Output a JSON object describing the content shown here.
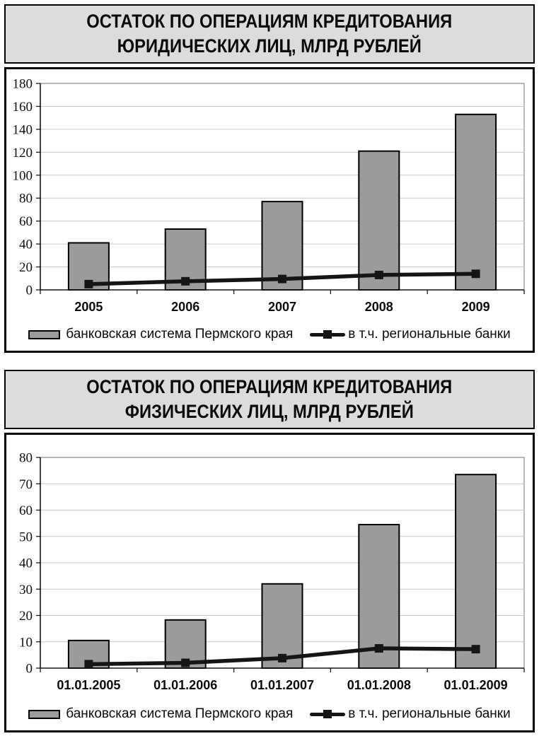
{
  "charts": [
    {
      "title_line1": "ОСТАТОК ПО ОПЕРАЦИЯМ КРЕДИТОВАНИЯ",
      "title_line2": "ЮРИДИЧЕСКИХ ЛИЦ, МЛРД РУБЛЕЙ"
    },
    {
      "title_line1": "ОСТАТОК ПО ОПЕРАЦИЯМ КРЕДИТОВАНИЯ",
      "title_line2": "ФИЗИЧЕСКИХ ЛИЦ, МЛРД РУБЛЕЙ"
    }
  ],
  "chart_data": [
    {
      "type": "bar",
      "title": "ОСТАТОК ПО ОПЕРАЦИЯМ КРЕДИТОВАНИЯ ЮРИДИЧЕСКИХ ЛИЦ, МЛРД РУБЛЕЙ",
      "categories": [
        "2005",
        "2006",
        "2007",
        "2008",
        "2009"
      ],
      "series": [
        {
          "name": "банковская система Пермского края",
          "type": "bar",
          "values": [
            41,
            53,
            77,
            121,
            153
          ]
        },
        {
          "name": "в т.ч. региональные банки",
          "type": "line",
          "values": [
            5,
            7.5,
            9.5,
            13,
            14
          ]
        }
      ],
      "xlabel": "",
      "ylabel": "",
      "ylim": [
        0,
        180
      ],
      "ytick_step": 20,
      "grid": true,
      "legend_position": "bottom"
    },
    {
      "type": "bar",
      "title": "ОСТАТОК ПО ОПЕРАЦИЯМ КРЕДИТОВАНИЯ ФИЗИЧЕСКИХ ЛИЦ, МЛРД РУБЛЕЙ",
      "categories": [
        "01.01.2005",
        "01.01.2006",
        "01.01.2007",
        "01.01.2008",
        "01.01.2009"
      ],
      "series": [
        {
          "name": "банковская система Пермского края",
          "type": "bar",
          "values": [
            10.5,
            18.3,
            32,
            54.5,
            73.5
          ]
        },
        {
          "name": "в т.ч. региональные банки",
          "type": "line",
          "values": [
            1.5,
            2,
            3.8,
            7.5,
            7.2
          ]
        }
      ],
      "xlabel": "",
      "ylabel": "",
      "ylim": [
        0,
        80
      ],
      "ytick_step": 10,
      "grid": true,
      "legend_position": "bottom"
    }
  ],
  "legend": {
    "bar_label": "банковская система Пермского края",
    "line_label": "в т.ч. региональные банки"
  },
  "colors": {
    "bar_fill": "#9b9b9b",
    "bar_stroke": "#000000",
    "line": "#151515",
    "grid": "#c9c9c9",
    "plot_border": "#8a8a8a",
    "axis": "#1a1a1a",
    "title_bg": "#dcdcdc",
    "box_border": "#000000"
  }
}
